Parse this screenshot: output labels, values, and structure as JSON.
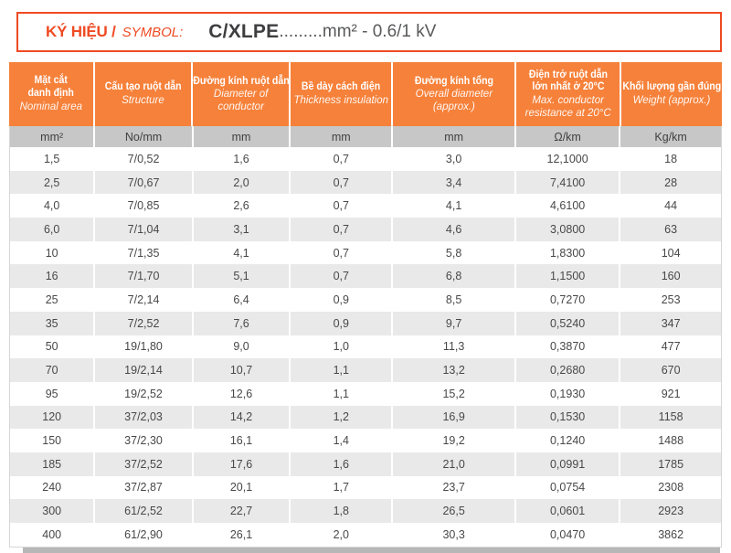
{
  "title_box": {
    "label_vi": "KÝ HIỆU /",
    "label_en": "SYMBOL:",
    "symbol": "C/XLPE",
    "symbol_suffix": ".........mm² - 0.6/1 kV"
  },
  "table": {
    "columns": [
      {
        "vi_lines": [
          "Mặt cắt",
          "danh định"
        ],
        "en": "Nominal area",
        "unit": "mm²"
      },
      {
        "vi_lines": [
          "Cấu tạo ruột dẫn"
        ],
        "en": "Structure",
        "unit": "No/mm"
      },
      {
        "vi_lines": [
          "Đường kính ruột dẫn"
        ],
        "en": "Diameter of conductor",
        "unit": "mm"
      },
      {
        "vi_lines": [
          "Bề dày cách điện"
        ],
        "en": "Thickness insulation",
        "unit": "mm"
      },
      {
        "vi_lines": [
          "Đường kính tổng"
        ],
        "en": "Overall diameter (approx.)",
        "unit": "mm"
      },
      {
        "vi_lines": [
          "Điện trở ruột dẫn",
          "lớn nhất ở 20°C"
        ],
        "en": "Max. conductor resistance at 20°C",
        "unit": "Ω/km"
      },
      {
        "vi_lines": [
          "Khối lượng gần đúng"
        ],
        "en": "Weight (approx.)",
        "unit": "Kg/km"
      }
    ],
    "rows": [
      [
        "1,5",
        "7/0,52",
        "1,6",
        "0,7",
        "3,0",
        "12,1000",
        "18"
      ],
      [
        "2,5",
        "7/0,67",
        "2,0",
        "0,7",
        "3,4",
        "7,4100",
        "28"
      ],
      [
        "4,0",
        "7/0,85",
        "2,6",
        "0,7",
        "4,1",
        "4,6100",
        "44"
      ],
      [
        "6,0",
        "7/1,04",
        "3,1",
        "0,7",
        "4,6",
        "3,0800",
        "63"
      ],
      [
        "10",
        "7/1,35",
        "4,1",
        "0,7",
        "5,8",
        "1,8300",
        "104"
      ],
      [
        "16",
        "7/1,70",
        "5,1",
        "0,7",
        "6,8",
        "1,1500",
        "160"
      ],
      [
        "25",
        "7/2,14",
        "6,4",
        "0,9",
        "8,5",
        "0,7270",
        "253"
      ],
      [
        "35",
        "7/2,52",
        "7,6",
        "0,9",
        "9,7",
        "0,5240",
        "347"
      ],
      [
        "50",
        "19/1,80",
        "9,0",
        "1,0",
        "11,3",
        "0,3870",
        "477"
      ],
      [
        "70",
        "19/2,14",
        "10,7",
        "1,1",
        "13,2",
        "0,2680",
        "670"
      ],
      [
        "95",
        "19/2,52",
        "12,6",
        "1,1",
        "15,2",
        "0,1930",
        "921"
      ],
      [
        "120",
        "37/2,03",
        "14,2",
        "1,2",
        "16,9",
        "0,1530",
        "1158"
      ],
      [
        "150",
        "37/2,30",
        "16,1",
        "1,4",
        "19,2",
        "0,1240",
        "1488"
      ],
      [
        "185",
        "37/2,52",
        "17,6",
        "1,6",
        "21,0",
        "0,0991",
        "1785"
      ],
      [
        "240",
        "37/2,87",
        "20,1",
        "1,7",
        "23,7",
        "0,0754",
        "2308"
      ],
      [
        "300",
        "61/2,52",
        "22,7",
        "1,8",
        "26,5",
        "0,0601",
        "2923"
      ],
      [
        "400",
        "61/2,90",
        "26,1",
        "2,0",
        "30,3",
        "0,0470",
        "3862"
      ]
    ]
  },
  "colors": {
    "accent_orange_header": "#f6813a",
    "accent_orange_red_border": "#ef4a23",
    "units_row_gray": "#c7c7c7",
    "row_stripe_gray": "#e9e9e9",
    "footer_bar_gray": "#b7b7b7",
    "body_text": "#48484a"
  }
}
